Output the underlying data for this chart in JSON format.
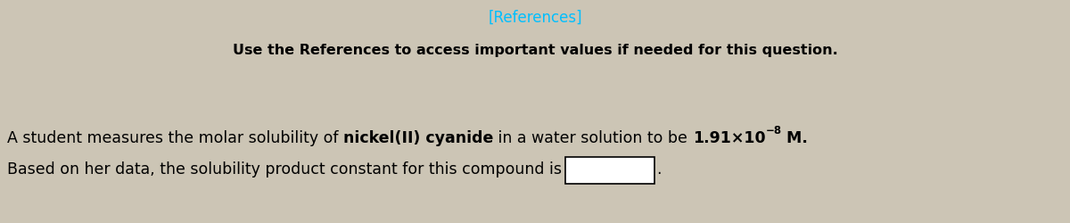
{
  "header_bg_color": "#2d2d2d",
  "header_text": "[References]",
  "header_text_color": "#00bfff",
  "header_fontsize": 12,
  "subheader_text": "Use the References to access important values if needed for this question.",
  "subheader_fontsize": 11.5,
  "body_bg_color": "#ccc5b5",
  "line1_part1": "A student measures the molar solubility of ",
  "line1_part2": "nickel(II) cyanide",
  "line1_part3": " in a water solution to be ",
  "line1_part4": "1.91×10",
  "line1_sup": "−8",
  "line1_part5": " M.",
  "line2_part1": "Based on her data, the solubility product constant for this compound is",
  "line2_part2": ".",
  "body_fontsize": 12.5,
  "fig_width": 12,
  "fig_height": 2.5,
  "dpi": 100
}
